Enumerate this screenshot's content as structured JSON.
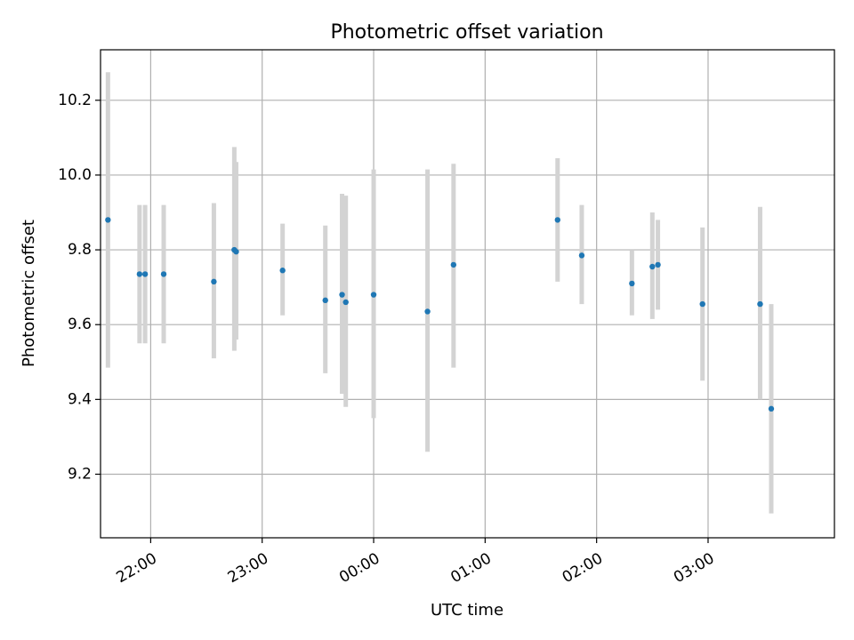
{
  "chart_data": {
    "type": "scatter",
    "title": "Photometric offset variation",
    "xlabel": "UTC time",
    "ylabel": "Photometric offset",
    "xlim": [
      "21:33",
      "04:08"
    ],
    "ylim": [
      9.03,
      10.335
    ],
    "grid": true,
    "x_ticks": [
      "22:00",
      "23:00",
      "00:00",
      "01:00",
      "02:00",
      "03:00"
    ],
    "y_ticks": [
      "9.2",
      "9.4",
      "9.6",
      "9.8",
      "10.0",
      "10.2"
    ],
    "colors": {
      "marker": "#1f77b4",
      "errorbar": "#d3d3d3",
      "grid": "#b0b0b0"
    },
    "series": [
      {
        "points": [
          {
            "t": "21:37",
            "y": 9.88,
            "err_low": 9.485,
            "err_high": 10.275
          },
          {
            "t": "21:54",
            "y": 9.735,
            "err_low": 9.55,
            "err_high": 9.92
          },
          {
            "t": "21:57",
            "y": 9.735,
            "err_low": 9.55,
            "err_high": 9.92
          },
          {
            "t": "22:07",
            "y": 9.735,
            "err_low": 9.55,
            "err_high": 9.92
          },
          {
            "t": "22:34",
            "y": 9.715,
            "err_low": 9.51,
            "err_high": 9.925
          },
          {
            "t": "22:45",
            "y": 9.8,
            "err_low": 9.53,
            "err_high": 10.075
          },
          {
            "t": "22:46",
            "y": 9.795,
            "err_low": 9.56,
            "err_high": 10.035
          },
          {
            "t": "23:11",
            "y": 9.745,
            "err_low": 9.625,
            "err_high": 9.87
          },
          {
            "t": "23:34",
            "y": 9.665,
            "err_low": 9.47,
            "err_high": 9.865
          },
          {
            "t": "23:43",
            "y": 9.68,
            "err_low": 9.415,
            "err_high": 9.95
          },
          {
            "t": "23:45",
            "y": 9.66,
            "err_low": 9.38,
            "err_high": 9.945
          },
          {
            "t": "00:00",
            "y": 9.68,
            "err_low": 9.35,
            "err_high": 10.015
          },
          {
            "t": "00:29",
            "y": 9.635,
            "err_low": 9.26,
            "err_high": 10.015
          },
          {
            "t": "00:43",
            "y": 9.76,
            "err_low": 9.485,
            "err_high": 10.03
          },
          {
            "t": "01:39",
            "y": 9.88,
            "err_low": 9.715,
            "err_high": 10.045
          },
          {
            "t": "01:52",
            "y": 9.785,
            "err_low": 9.655,
            "err_high": 9.92
          },
          {
            "t": "02:19",
            "y": 9.71,
            "err_low": 9.625,
            "err_high": 9.8
          },
          {
            "t": "02:30",
            "y": 9.755,
            "err_low": 9.615,
            "err_high": 9.9
          },
          {
            "t": "02:33",
            "y": 9.76,
            "err_low": 9.64,
            "err_high": 9.88
          },
          {
            "t": "02:57",
            "y": 9.655,
            "err_low": 9.45,
            "err_high": 9.86
          },
          {
            "t": "03:28",
            "y": 9.655,
            "err_low": 9.4,
            "err_high": 9.915
          },
          {
            "t": "03:34",
            "y": 9.375,
            "err_low": 9.095,
            "err_high": 9.655
          }
        ]
      }
    ]
  }
}
